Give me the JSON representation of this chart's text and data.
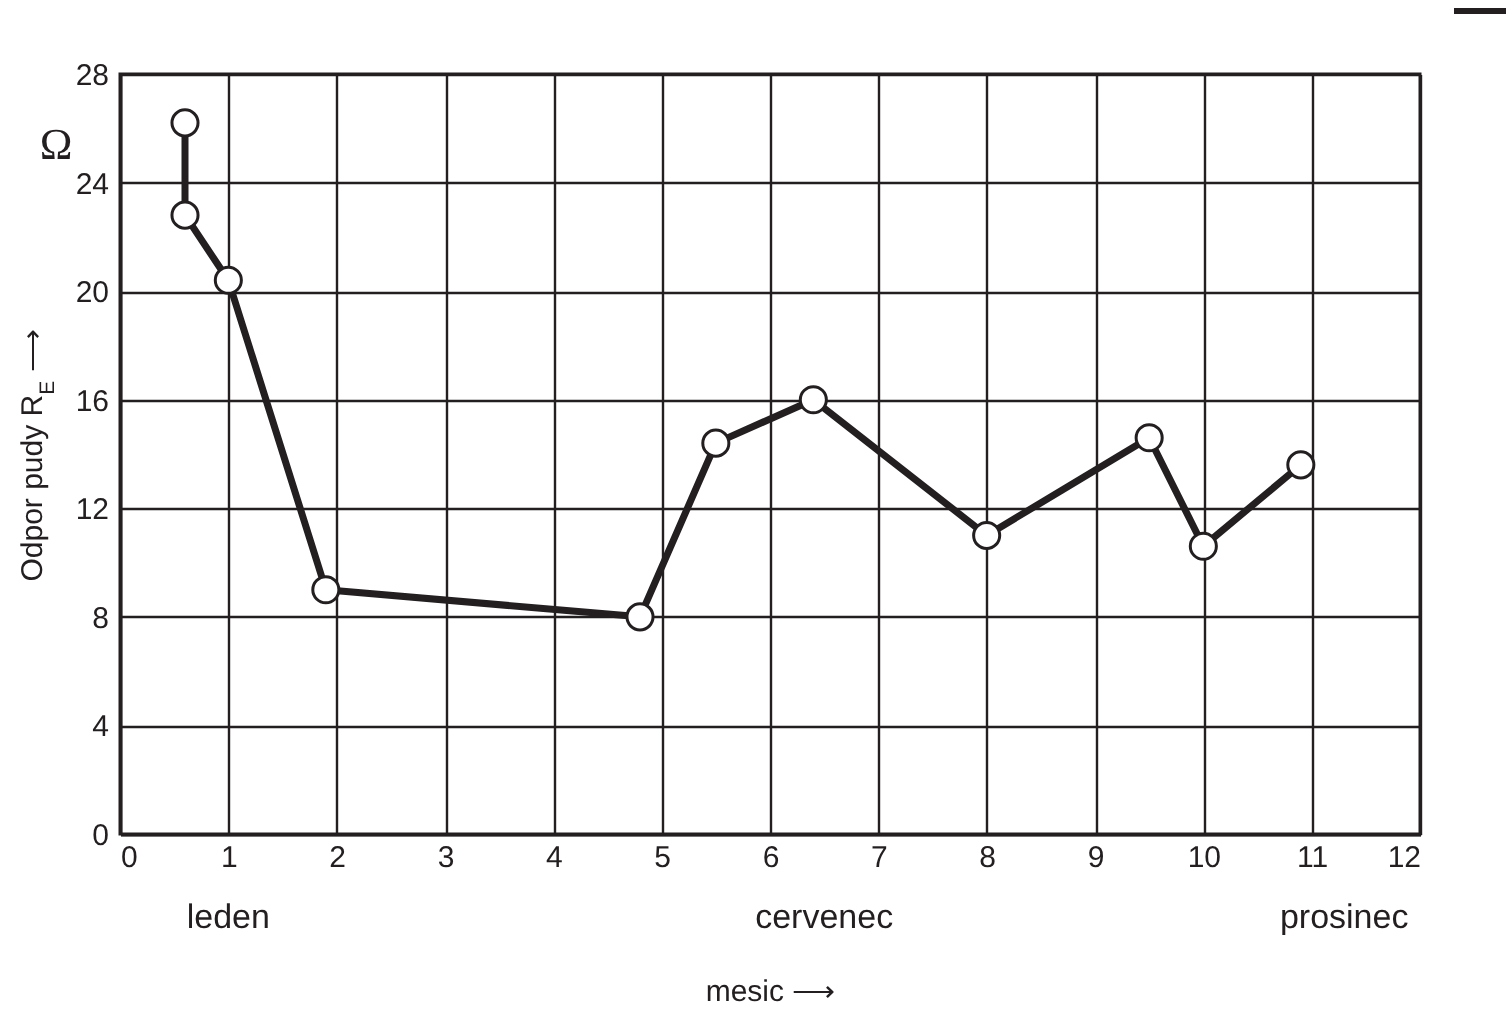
{
  "chart_data": {
    "type": "line",
    "xlabel": "mesic ⟶",
    "ylabel": "Odpor pudy R$_{E}$ ⟶",
    "x": [
      0.6,
      0.6,
      1.0,
      1.9,
      4.8,
      5.5,
      6.4,
      8.0,
      9.5,
      10.0,
      10.9
    ],
    "series": [
      {
        "color": "#231f20",
        "values": [
          26.2,
          22.8,
          20.4,
          9.0,
          8.0,
          14.4,
          16.0,
          11.0,
          14.6,
          10.6,
          13.6
        ]
      }
    ],
    "xlim": [
      0,
      12
    ],
    "xticks": [
      0,
      1,
      2,
      3,
      4,
      5,
      6,
      7,
      8,
      9,
      10,
      11,
      12
    ],
    "ylim": [
      0,
      28
    ],
    "yticks": [
      0,
      4,
      8,
      12,
      16,
      20,
      24,
      28
    ],
    "grid": true,
    "marker": "circle",
    "line_style": "solid",
    "annotations": [
      "Ω",
      "leden",
      "cervenec",
      "prosinec"
    ]
  }
}
